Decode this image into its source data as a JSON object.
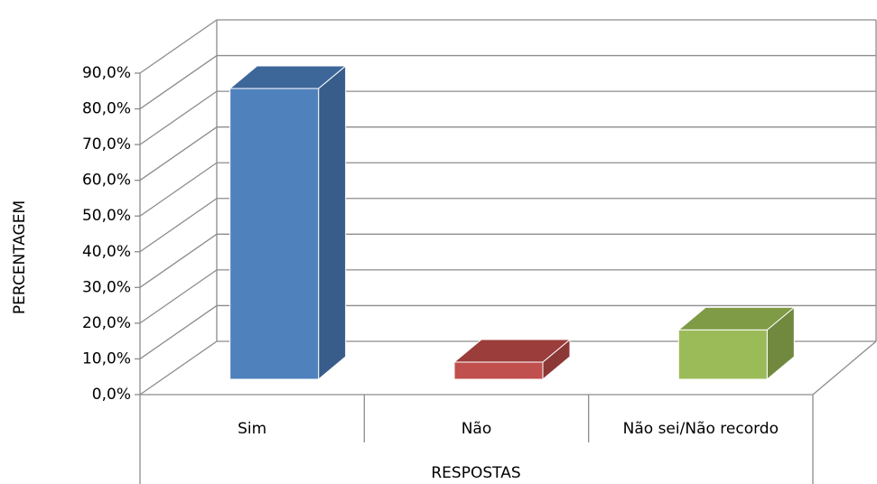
{
  "chart_data": {
    "type": "bar",
    "categories": [
      "Sim",
      "Não",
      "Não sei/Não recordo"
    ],
    "values": [
      81.4,
      4.8,
      13.8
    ],
    "colors": [
      "#4f81bd",
      "#c0504d",
      "#9bbb59"
    ],
    "side_colors": [
      "#385d8a",
      "#8c3836",
      "#71893f"
    ],
    "top_colors": [
      "#3d6699",
      "#9a3d3b",
      "#7f9b45"
    ],
    "ylim": [
      0,
      90
    ],
    "yticks": [
      {
        "value": 0,
        "label": "0,0%"
      },
      {
        "value": 10,
        "label": "10,0%"
      },
      {
        "value": 20,
        "label": "20,0%"
      },
      {
        "value": 30,
        "label": "30,0%"
      },
      {
        "value": 40,
        "label": "40,0%"
      },
      {
        "value": 50,
        "label": "50,0%"
      },
      {
        "value": 60,
        "label": "60,0%"
      },
      {
        "value": 70,
        "label": "70,0%"
      },
      {
        "value": 80,
        "label": "80,0%"
      },
      {
        "value": 90,
        "label": "90,0%"
      }
    ],
    "ylabel": "PERCENTAGEM",
    "xlabel": "RESPOSTAS",
    "grid": true
  }
}
